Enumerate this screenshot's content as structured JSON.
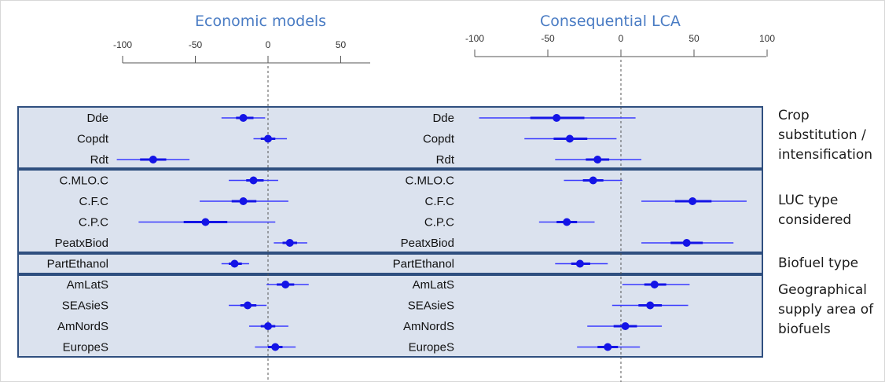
{
  "chart_data": [
    {
      "type": "forest",
      "title": "Economic models",
      "xlim": [
        -100,
        75
      ],
      "xticks": [
        -100,
        -50,
        0,
        50
      ],
      "reference_line": 0,
      "groups": [
        {
          "label": "Crop substitution / intensification",
          "rows": [
            {
              "name": "Dde",
              "estimate": -17,
              "ci_inner": [
                -22,
                -10
              ],
              "ci_outer": [
                -32,
                -2
              ]
            },
            {
              "name": "Copdt",
              "estimate": 0,
              "ci_inner": [
                -5,
                5
              ],
              "ci_outer": [
                -10,
                13
              ]
            },
            {
              "name": "Rdt",
              "estimate": -79,
              "ci_inner": [
                -88,
                -70
              ],
              "ci_outer": [
                -104,
                -54
              ]
            }
          ]
        },
        {
          "label": "LUC type considered",
          "rows": [
            {
              "name": "C.MLO.C",
              "estimate": -10,
              "ci_inner": [
                -15,
                -3
              ],
              "ci_outer": [
                -27,
                7
              ]
            },
            {
              "name": "C.F.C",
              "estimate": -17,
              "ci_inner": [
                -25,
                -8
              ],
              "ci_outer": [
                -47,
                14
              ]
            },
            {
              "name": "C.P.C",
              "estimate": -43,
              "ci_inner": [
                -58,
                -28
              ],
              "ci_outer": [
                -89,
                5
              ]
            },
            {
              "name": "PeatxBiod",
              "estimate": 15,
              "ci_inner": [
                10,
                20
              ],
              "ci_outer": [
                4,
                27
              ]
            }
          ]
        },
        {
          "label": "Biofuel type",
          "rows": [
            {
              "name": "PartEthanol",
              "estimate": -23,
              "ci_inner": [
                -27,
                -18
              ],
              "ci_outer": [
                -32,
                -13
              ]
            }
          ]
        },
        {
          "label": "Geographical supply area of biofuels",
          "rows": [
            {
              "name": "AmLatS",
              "estimate": 12,
              "ci_inner": [
                6,
                18
              ],
              "ci_outer": [
                -1,
                28
              ]
            },
            {
              "name": "SEAsieS",
              "estimate": -14,
              "ci_inner": [
                -19,
                -8
              ],
              "ci_outer": [
                -27,
                -1
              ]
            },
            {
              "name": "AmNordS",
              "estimate": 0,
              "ci_inner": [
                -5,
                5
              ],
              "ci_outer": [
                -13,
                14
              ]
            },
            {
              "name": "EuropeS",
              "estimate": 5,
              "ci_inner": [
                0,
                10
              ],
              "ci_outer": [
                -9,
                19
              ]
            }
          ]
        }
      ]
    },
    {
      "type": "forest",
      "title": "Consequential LCA",
      "xlim": [
        -100,
        100
      ],
      "xticks": [
        -100,
        -50,
        0,
        50,
        100
      ],
      "reference_line": 0,
      "groups": [
        {
          "label": "Crop substitution / intensification",
          "rows": [
            {
              "name": "Dde",
              "estimate": -44,
              "ci_inner": [
                -62,
                -25
              ],
              "ci_outer": [
                -97,
                10
              ]
            },
            {
              "name": "Copdt",
              "estimate": -35,
              "ci_inner": [
                -46,
                -23
              ],
              "ci_outer": [
                -66,
                -3
              ]
            },
            {
              "name": "Rdt",
              "estimate": -16,
              "ci_inner": [
                -24,
                -8
              ],
              "ci_outer": [
                -45,
                14
              ]
            }
          ]
        },
        {
          "label": "LUC type considered",
          "rows": [
            {
              "name": "C.MLO.C",
              "estimate": -19,
              "ci_inner": [
                -26,
                -12
              ],
              "ci_outer": [
                -39,
                1
              ]
            },
            {
              "name": "C.F.C",
              "estimate": 49,
              "ci_inner": [
                37,
                62
              ],
              "ci_outer": [
                14,
                86
              ]
            },
            {
              "name": "C.P.C",
              "estimate": -37,
              "ci_inner": [
                -44,
                -30
              ],
              "ci_outer": [
                -56,
                -18
              ]
            },
            {
              "name": "PeatxBiod",
              "estimate": 45,
              "ci_inner": [
                34,
                56
              ],
              "ci_outer": [
                14,
                77
              ]
            }
          ]
        },
        {
          "label": "Biofuel type",
          "rows": [
            {
              "name": "PartEthanol",
              "estimate": -28,
              "ci_inner": [
                -34,
                -21
              ],
              "ci_outer": [
                -45,
                -9
              ]
            }
          ]
        },
        {
          "label": "Geographical supply area of biofuels",
          "rows": [
            {
              "name": "AmLatS",
              "estimate": 23,
              "ci_inner": [
                16,
                31
              ],
              "ci_outer": [
                1,
                47
              ]
            },
            {
              "name": "SEAsieS",
              "estimate": 20,
              "ci_inner": [
                12,
                28
              ],
              "ci_outer": [
                -6,
                46
              ]
            },
            {
              "name": "AmNordS",
              "estimate": 3,
              "ci_inner": [
                -5,
                11
              ],
              "ci_outer": [
                -23,
                28
              ]
            },
            {
              "name": "EuropeS",
              "estimate": -9,
              "ci_inner": [
                -16,
                -2
              ],
              "ci_outer": [
                -30,
                13
              ]
            }
          ]
        }
      ]
    }
  ],
  "group_labels": [
    "Crop substitution / intensification",
    "LUC type considered",
    "Biofuel type",
    "Geographical supply area of biofuels"
  ],
  "colors": {
    "box_fill": "#dbe2ee",
    "box_border": "#2f4f7f",
    "marker": "#1414e6",
    "ci": "#3b3bff",
    "title": "#4a7cc4"
  }
}
